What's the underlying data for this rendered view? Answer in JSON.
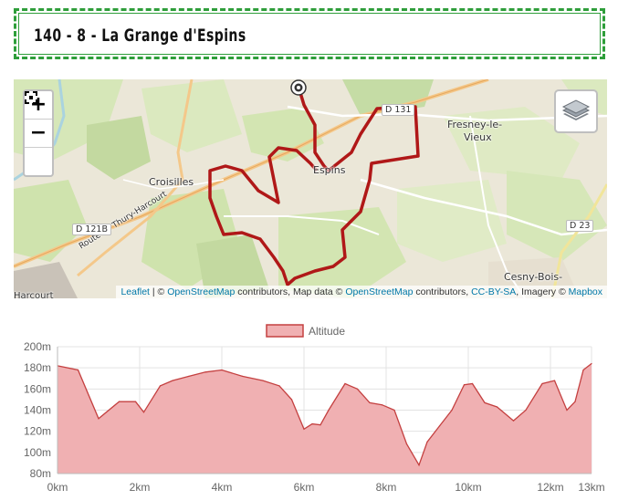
{
  "title": "140 - 8 - La Grange d'Espins",
  "map": {
    "zoom_in": "+",
    "zoom_out": "−",
    "labels": {
      "croisilles": "Croisilles",
      "espins": "Espins",
      "fresney1": "Fresney-le-",
      "fresney2": "Vieux",
      "cesny": "Cesny-Bois-",
      "harcourt": "Harcourt",
      "road_thury": "Route de Thury-Harcourt"
    },
    "road_shields": {
      "d121b": "D 121B",
      "d131": "D 131",
      "d23": "D 23"
    },
    "attribution": {
      "leaflet": "Leaflet",
      "sep1": " | © ",
      "osm1": "OpenStreetMap",
      "text1": " contributors, Map data © ",
      "osm2": "OpenStreetMap",
      "text2": " contributors, ",
      "ccbysa": "CC-BY-SA",
      "text3": ", Imagery © ",
      "mapbox": "Mapbox"
    },
    "icons": [
      "zoom-in-icon",
      "zoom-out-icon",
      "fullscreen-icon",
      "layers-icon",
      "start-marker-icon"
    ],
    "colors": {
      "route": "#b01818",
      "land": "#e9e4d4",
      "field": "#d4e6b5",
      "forest": "#c3d9a0"
    }
  },
  "chart_data": {
    "type": "area",
    "legend": "Altitude",
    "x": [
      0,
      0.5,
      1,
      1.5,
      1.9,
      2.1,
      2.5,
      2.8,
      3.2,
      3.6,
      4,
      4.5,
      5,
      5.4,
      5.7,
      6,
      6.2,
      6.4,
      6.6,
      7,
      7.3,
      7.6,
      7.9,
      8.2,
      8.5,
      8.8,
      9,
      9.3,
      9.6,
      9.9,
      10.1,
      10.4,
      10.7,
      11.1,
      11.4,
      11.8,
      12.1,
      12.4,
      12.6,
      12.8,
      13
    ],
    "y": [
      182,
      178,
      132,
      148,
      148,
      138,
      163,
      168,
      172,
      176,
      178,
      172,
      168,
      163,
      150,
      122,
      127,
      126,
      140,
      165,
      160,
      147,
      145,
      140,
      108,
      88,
      110,
      125,
      140,
      164,
      165,
      147,
      143,
      130,
      140,
      165,
      168,
      140,
      148,
      178,
      184
    ],
    "xlabel": "",
    "ylabel": "",
    "x_ticks": [
      "0km",
      "2km",
      "4km",
      "6km",
      "8km",
      "10km",
      "12km",
      "13km"
    ],
    "y_ticks": [
      "80m",
      "100m",
      "120m",
      "140m",
      "160m",
      "180m",
      "200m"
    ],
    "xlim": [
      0,
      13
    ],
    "ylim": [
      80,
      200
    ],
    "grid": true,
    "legend_position": "top-center",
    "colors": {
      "fill": "#f0b0b2",
      "stroke": "#c44040"
    }
  }
}
